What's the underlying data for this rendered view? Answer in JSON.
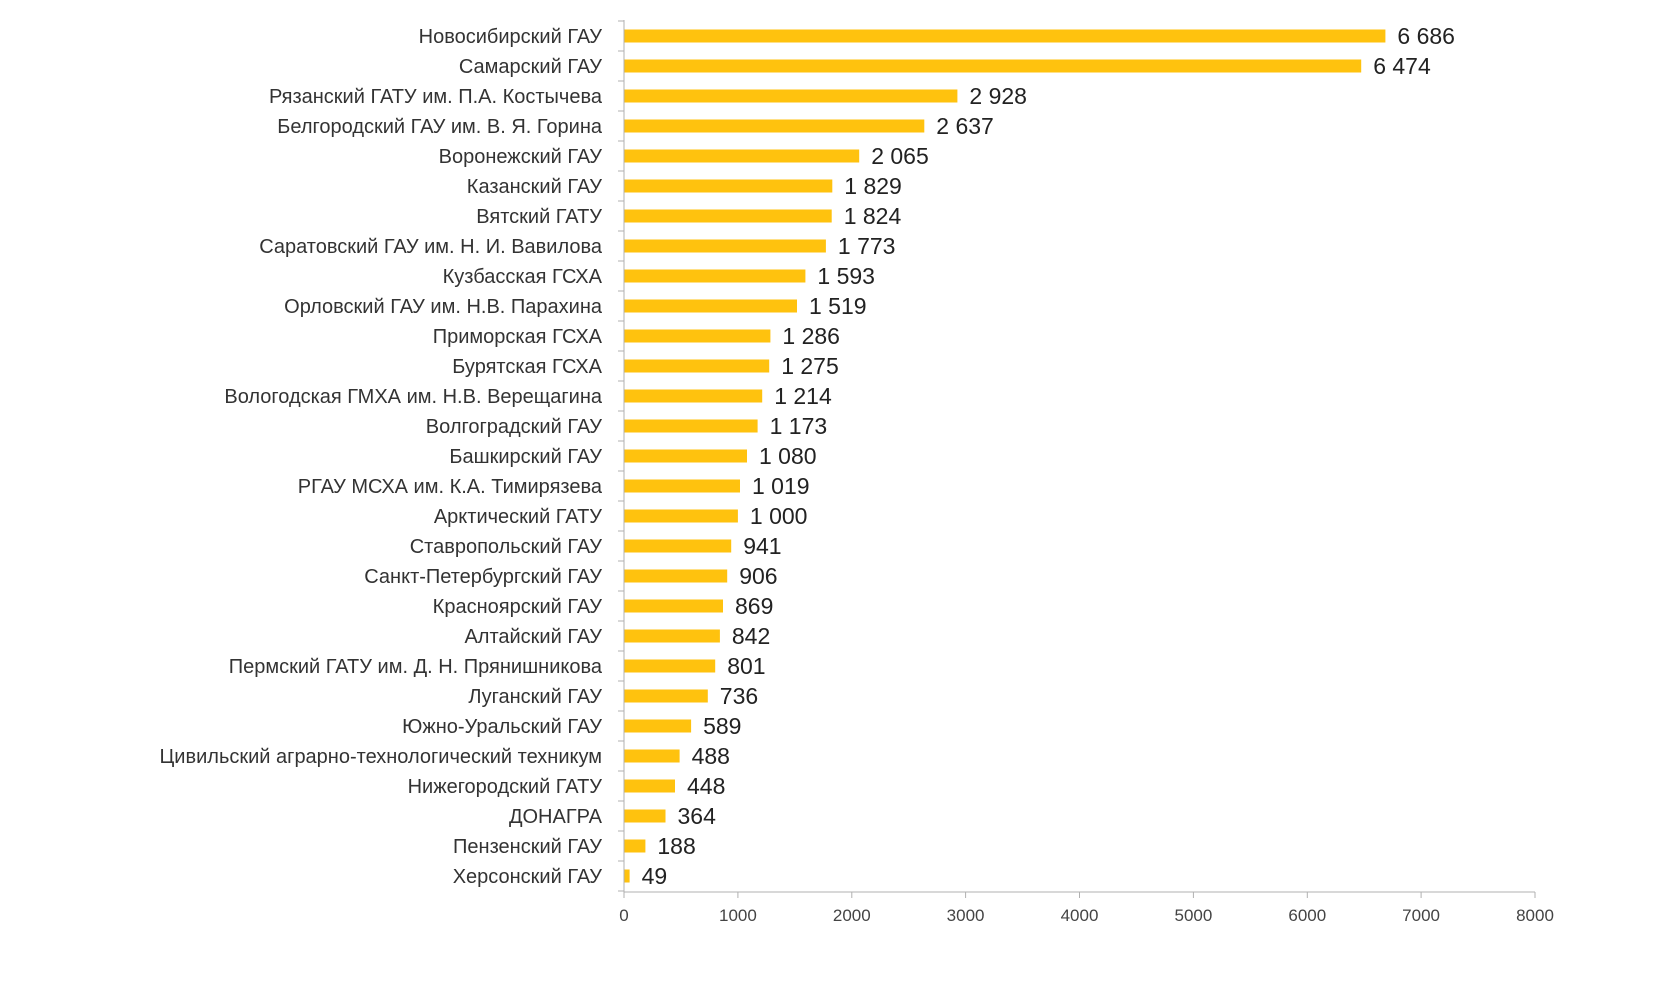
{
  "chart_data": {
    "type": "bar",
    "orientation": "horizontal",
    "bar_color": "#FFC20E",
    "xlim": [
      0,
      8000
    ],
    "x_ticks": [
      0,
      1000,
      2000,
      3000,
      4000,
      5000,
      6000,
      7000,
      8000
    ],
    "grid": false,
    "legend": "none",
    "categories": [
      "Новосибирский ГАУ",
      "Самарский ГАУ",
      "Рязанский ГАТУ им. П.А. Костычева",
      "Белгородский ГАУ им. В. Я. Горина",
      "Воронежский ГАУ",
      "Казанский ГАУ",
      "Вятский ГАТУ",
      "Саратовский ГАУ им. Н. И. Вавилова",
      "Кузбасская ГСХА",
      "Орловский ГАУ им. Н.В. Парахина",
      "Приморская ГСХА",
      "Бурятская ГСХА",
      "Вологодская ГМХА им. Н.В. Верещагина",
      "Волгоградский ГАУ",
      "Башкирский ГАУ",
      "РГАУ МСХА им. К.А. Тимирязева",
      "Арктический ГАТУ",
      "Ставропольский ГАУ",
      "Санкт-Петербургский ГАУ",
      "Красноярский ГАУ",
      "Алтайский ГАУ",
      "Пермский ГАТУ им. Д. Н. Прянишникова",
      "Луганский ГАУ",
      "Южно-Уральский ГАУ",
      "Цивильский аграрно-технологический техникум",
      "Нижегородский ГАТУ",
      "ДОНАГРА",
      "Пензенский ГАУ",
      "Херсонский ГАУ"
    ],
    "values": [
      6686,
      6474,
      2928,
      2637,
      2065,
      1829,
      1824,
      1773,
      1593,
      1519,
      1286,
      1275,
      1214,
      1173,
      1080,
      1019,
      1000,
      941,
      906,
      869,
      842,
      801,
      736,
      589,
      488,
      448,
      364,
      188,
      49
    ],
    "value_labels": [
      "6 686",
      "6 474",
      "2 928",
      "2 637",
      "2 065",
      "1 829",
      "1 824",
      "1 773",
      "1 593",
      "1 519",
      "1 286",
      "1 275",
      "1 214",
      "1 173",
      "1 080",
      "1 019",
      "1 000",
      "941",
      "906",
      "869",
      "842",
      "801",
      "736",
      "589",
      "488",
      "448",
      "364",
      "188",
      "49"
    ]
  }
}
